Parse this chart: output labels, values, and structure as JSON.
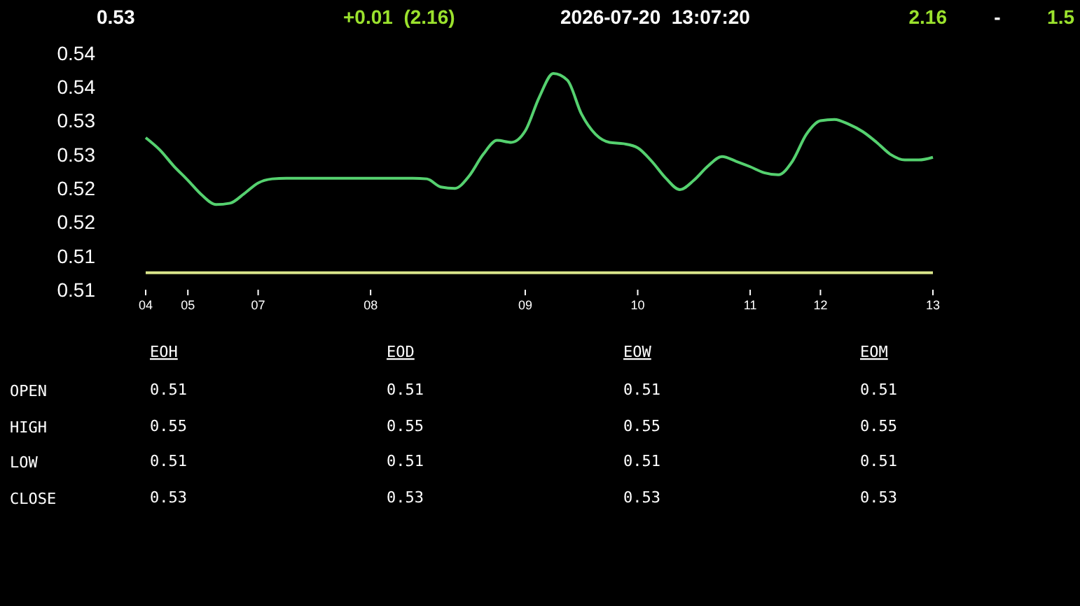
{
  "chart_data": [
    {
      "type": "line",
      "title": "0.53",
      "annotations": [
        "+0.01  (2.16)",
        "2026-07-20  13:07:20",
        "2.16",
        "-",
        "1.5"
      ],
      "categories": [
        "04",
        null,
        null,
        "05",
        null,
        null,
        null,
        null,
        "07",
        null,
        null,
        null,
        null,
        null,
        null,
        null,
        "08",
        null,
        null,
        null,
        null,
        null,
        null,
        null,
        null,
        null,
        null,
        "09",
        null,
        null,
        null,
        null,
        null,
        null,
        null,
        "10",
        null,
        null,
        null,
        null,
        null,
        null,
        null,
        "11",
        null,
        null,
        null,
        null,
        "12",
        null,
        null,
        null,
        null,
        null,
        null,
        null,
        "13"
      ],
      "series": [
        {
          "color": "#55d16f",
          "values": [
            0.5325,
            0.5307,
            0.5283,
            0.5262,
            0.524,
            0.5226,
            0.5228,
            0.5242,
            0.5258,
            0.5264,
            0.5265,
            0.5265,
            0.5265,
            0.5265,
            0.5265,
            0.5265,
            0.5265,
            0.5265,
            0.5265,
            0.5265,
            0.5264,
            0.5252,
            0.525,
            0.5268,
            0.53,
            0.5321,
            0.5318,
            0.5335,
            0.5385,
            0.542,
            0.541,
            0.536,
            0.533,
            0.5318,
            0.5316,
            0.531,
            0.529,
            0.5265,
            0.5248,
            0.5262,
            0.5283,
            0.5297,
            0.529,
            0.5282,
            0.5273,
            0.527,
            0.529,
            0.533,
            0.535,
            0.5352,
            0.5345,
            0.5334,
            0.5318,
            0.53,
            0.5292,
            0.5292,
            0.5296
          ]
        },
        {
          "color": "#d9e58a",
          "values": [
            0.5125,
            0.5125,
            0.5125,
            0.5125,
            0.5125,
            0.5125,
            0.5125,
            0.5125,
            0.5125,
            0.5125,
            0.5125,
            0.5125,
            0.5125,
            0.5125,
            0.5125,
            0.5125,
            0.5125,
            0.5125,
            0.5125,
            0.5125,
            0.5125,
            0.5125,
            0.5125,
            0.5125,
            0.5125,
            0.5125,
            0.5125,
            0.5125,
            0.5125,
            0.5125,
            0.5125,
            0.5125,
            0.5125,
            0.5125,
            0.5125,
            0.5125,
            0.5125,
            0.5125,
            0.5125,
            0.5125,
            0.5125,
            0.5125,
            0.5125,
            0.5125,
            0.5125,
            0.5125,
            0.5125,
            0.5125,
            0.5125,
            0.5125,
            0.5125,
            0.5125,
            0.5125,
            0.5125,
            0.5125,
            0.5125,
            0.5125
          ]
        }
      ],
      "ylim": [
        0.51,
        0.545
      ],
      "yticks": [
        {
          "value": 0.545,
          "label": "0.54"
        },
        {
          "value": 0.54,
          "label": "0.54"
        },
        {
          "value": 0.535,
          "label": "0.53"
        },
        {
          "value": 0.53,
          "label": "0.53"
        },
        {
          "value": 0.525,
          "label": "0.52"
        },
        {
          "value": 0.52,
          "label": "0.52"
        },
        {
          "value": 0.515,
          "label": "0.51"
        },
        {
          "value": 0.51,
          "label": "0.51"
        }
      ],
      "grid": false
    },
    {
      "type": "heatmap",
      "categories": [
        "EOH",
        "EOD",
        "EOW",
        "EOM"
      ],
      "y_categories": [
        "OPEN",
        "HIGH",
        "LOW",
        "CLOSE"
      ],
      "data_labels": true,
      "cells": [
        [
          0.51,
          0.51,
          0.51,
          0.51
        ],
        [
          0.55,
          0.55,
          0.55,
          0.55
        ],
        [
          0.51,
          0.51,
          0.51,
          0.51
        ],
        [
          0.53,
          0.53,
          0.53,
          0.53
        ]
      ]
    }
  ]
}
